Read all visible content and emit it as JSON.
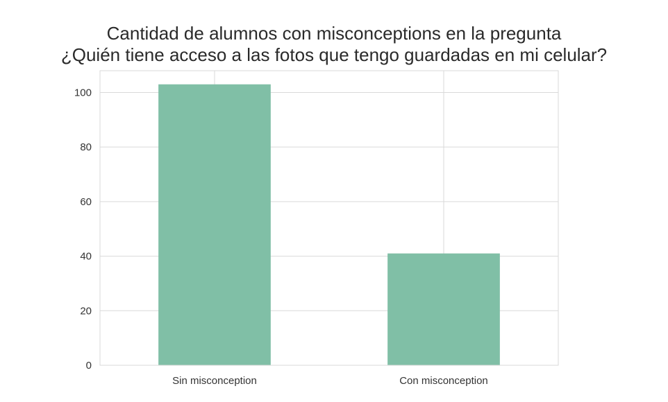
{
  "chart_data": {
    "type": "bar",
    "title_line1": "Cantidad de alumnos con misconceptions en la pregunta",
    "title_line2": "¿Quién tiene acceso a las fotos que tengo guardadas en mi celular?",
    "categories": [
      "Sin misconception",
      "Con misconception"
    ],
    "values": [
      103,
      41
    ],
    "ylim": [
      0,
      108
    ],
    "yticks": [
      0,
      20,
      40,
      60,
      80,
      100
    ],
    "grid": true,
    "bar_color": "#80bfa6",
    "grid_color": "#d9d9d9"
  }
}
